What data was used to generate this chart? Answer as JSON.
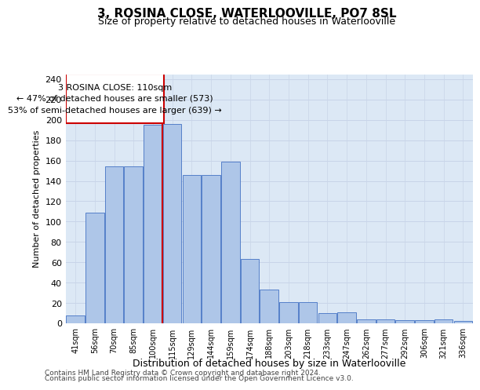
{
  "title1": "3, ROSINA CLOSE, WATERLOOVILLE, PO7 8SL",
  "title2": "Size of property relative to detached houses in Waterlooville",
  "xlabel": "Distribution of detached houses by size in Waterlooville",
  "ylabel": "Number of detached properties",
  "footer1": "Contains HM Land Registry data © Crown copyright and database right 2024.",
  "footer2": "Contains public sector information licensed under the Open Government Licence v3.0.",
  "annotation_line1": "3 ROSINA CLOSE: 110sqm",
  "annotation_line2": "← 47% of detached houses are smaller (573)",
  "annotation_line3": "53% of semi-detached houses are larger (639) →",
  "categories": [
    "41sqm",
    "56sqm",
    "70sqm",
    "85sqm",
    "100sqm",
    "115sqm",
    "129sqm",
    "144sqm",
    "159sqm",
    "174sqm",
    "188sqm",
    "203sqm",
    "218sqm",
    "233sqm",
    "247sqm",
    "262sqm",
    "277sqm",
    "292sqm",
    "306sqm",
    "321sqm",
    "336sqm"
  ],
  "values": [
    8,
    109,
    154,
    154,
    195,
    196,
    146,
    146,
    159,
    63,
    33,
    21,
    21,
    10,
    11,
    4,
    4,
    3,
    3,
    4,
    2
  ],
  "bar_color": "#aec6e8",
  "bar_edge_color": "#4472c4",
  "vline_color": "#cc0000",
  "vline_x": 4.5,
  "annotation_box_color": "#cc0000",
  "ylim": [
    0,
    245
  ],
  "yticks": [
    0,
    20,
    40,
    60,
    80,
    100,
    120,
    140,
    160,
    180,
    200,
    220,
    240
  ],
  "grid_color": "#c8d4e8",
  "bg_color": "#dce8f5",
  "title1_fontsize": 11,
  "title2_fontsize": 9,
  "axis_fontsize": 8,
  "annotation_fontsize": 8,
  "footer_fontsize": 6.5
}
